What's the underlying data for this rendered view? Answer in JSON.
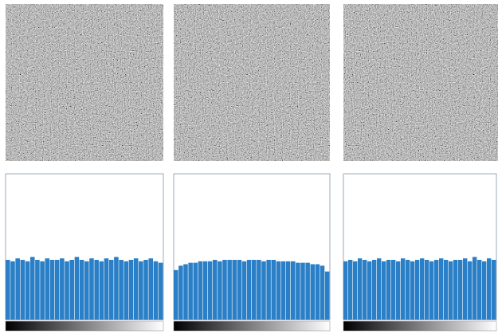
{
  "chart_data": [
    {
      "type": "histogram",
      "color": "#2a7fc6",
      "xlim": [
        0,
        256
      ],
      "ylim": [
        0,
        100
      ],
      "bins": [
        0,
        8,
        16,
        24,
        32,
        40,
        48,
        56,
        64,
        72,
        80,
        88,
        96,
        104,
        112,
        120,
        128,
        136,
        144,
        152,
        160,
        168,
        176,
        184,
        192,
        200,
        208,
        216,
        224,
        232,
        240,
        248,
        256
      ],
      "values": [
        41,
        40,
        42,
        41,
        40,
        43,
        41,
        40,
        42,
        41,
        41,
        42,
        40,
        41,
        43,
        41,
        40,
        42,
        41,
        40,
        42,
        41,
        43,
        41,
        40,
        41,
        42,
        40,
        41,
        42,
        40,
        39
      ]
    },
    {
      "type": "histogram",
      "color": "#2a7fc6",
      "xlim": [
        0,
        256
      ],
      "ylim": [
        0,
        100
      ],
      "bins": [
        0,
        8,
        16,
        24,
        32,
        40,
        48,
        56,
        64,
        72,
        80,
        88,
        96,
        104,
        112,
        120,
        128,
        136,
        144,
        152,
        160,
        168,
        176,
        184,
        192,
        200,
        208,
        216,
        224,
        232,
        240,
        248,
        256
      ],
      "values": [
        34,
        37,
        38,
        39,
        39,
        40,
        40,
        40,
        41,
        40,
        41,
        41,
        41,
        41,
        40,
        41,
        41,
        41,
        40,
        41,
        41,
        40,
        40,
        40,
        40,
        39,
        39,
        39,
        38,
        38,
        37,
        33
      ]
    },
    {
      "type": "histogram",
      "color": "#2a7fc6",
      "xlim": [
        0,
        256
      ],
      "ylim": [
        0,
        100
      ],
      "bins": [
        0,
        8,
        16,
        24,
        32,
        40,
        48,
        56,
        64,
        72,
        80,
        88,
        96,
        104,
        112,
        120,
        128,
        136,
        144,
        152,
        160,
        168,
        176,
        184,
        192,
        200,
        208,
        216,
        224,
        232,
        240,
        248,
        256
      ],
      "values": [
        40,
        41,
        40,
        42,
        41,
        40,
        41,
        42,
        40,
        41,
        41,
        40,
        42,
        41,
        40,
        41,
        42,
        41,
        40,
        41,
        42,
        41,
        40,
        41,
        41,
        42,
        40,
        43,
        41,
        40,
        42,
        41
      ]
    }
  ]
}
